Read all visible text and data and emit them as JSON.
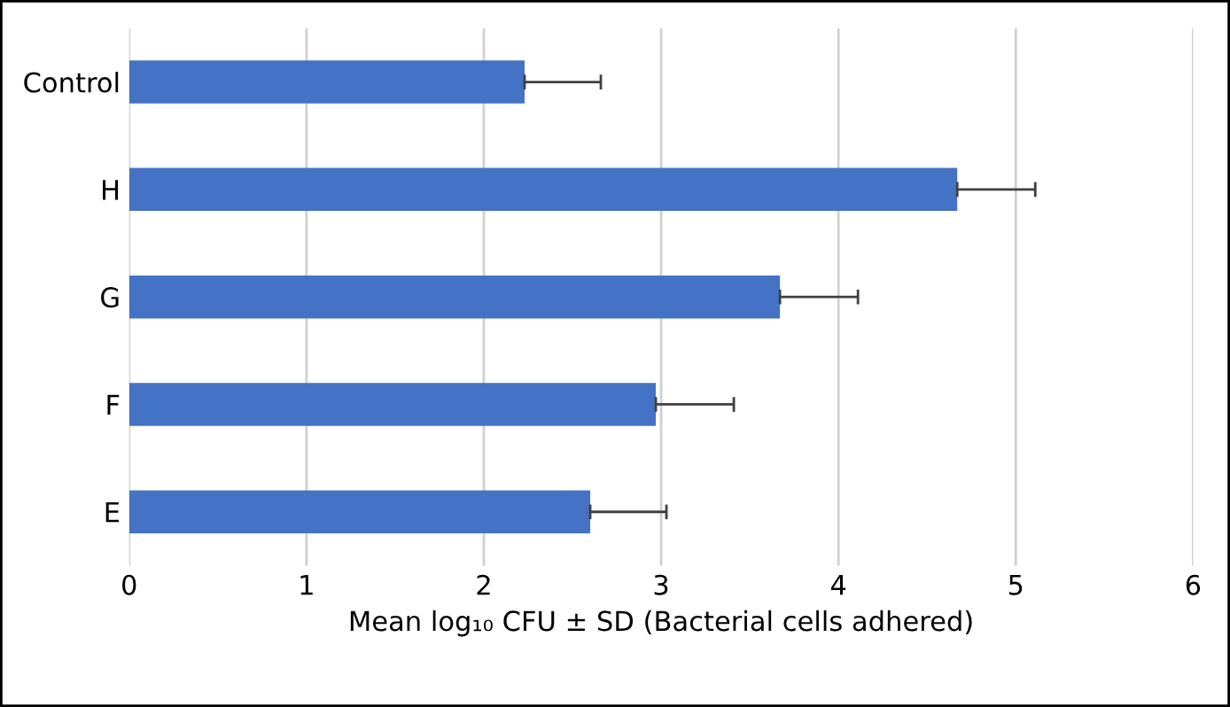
{
  "chart_data": {
    "type": "bar",
    "orientation": "horizontal",
    "categories": [
      "Control",
      "H",
      "G",
      "F",
      "E"
    ],
    "values": [
      2.23,
      4.67,
      3.67,
      2.97,
      2.6
    ],
    "errors": [
      [
        2.23,
        2.66
      ],
      [
        4.67,
        5.11
      ],
      [
        3.67,
        4.11
      ],
      [
        2.97,
        3.41
      ],
      [
        2.6,
        3.03
      ]
    ],
    "color": "#4472c4",
    "xlabel": "Mean log₁₀ CFU ± SD (Bacterial cells adhered)",
    "xlim": [
      0,
      6
    ],
    "xticks": [
      0,
      1,
      2,
      3,
      4,
      5,
      6
    ],
    "grid": "x"
  }
}
